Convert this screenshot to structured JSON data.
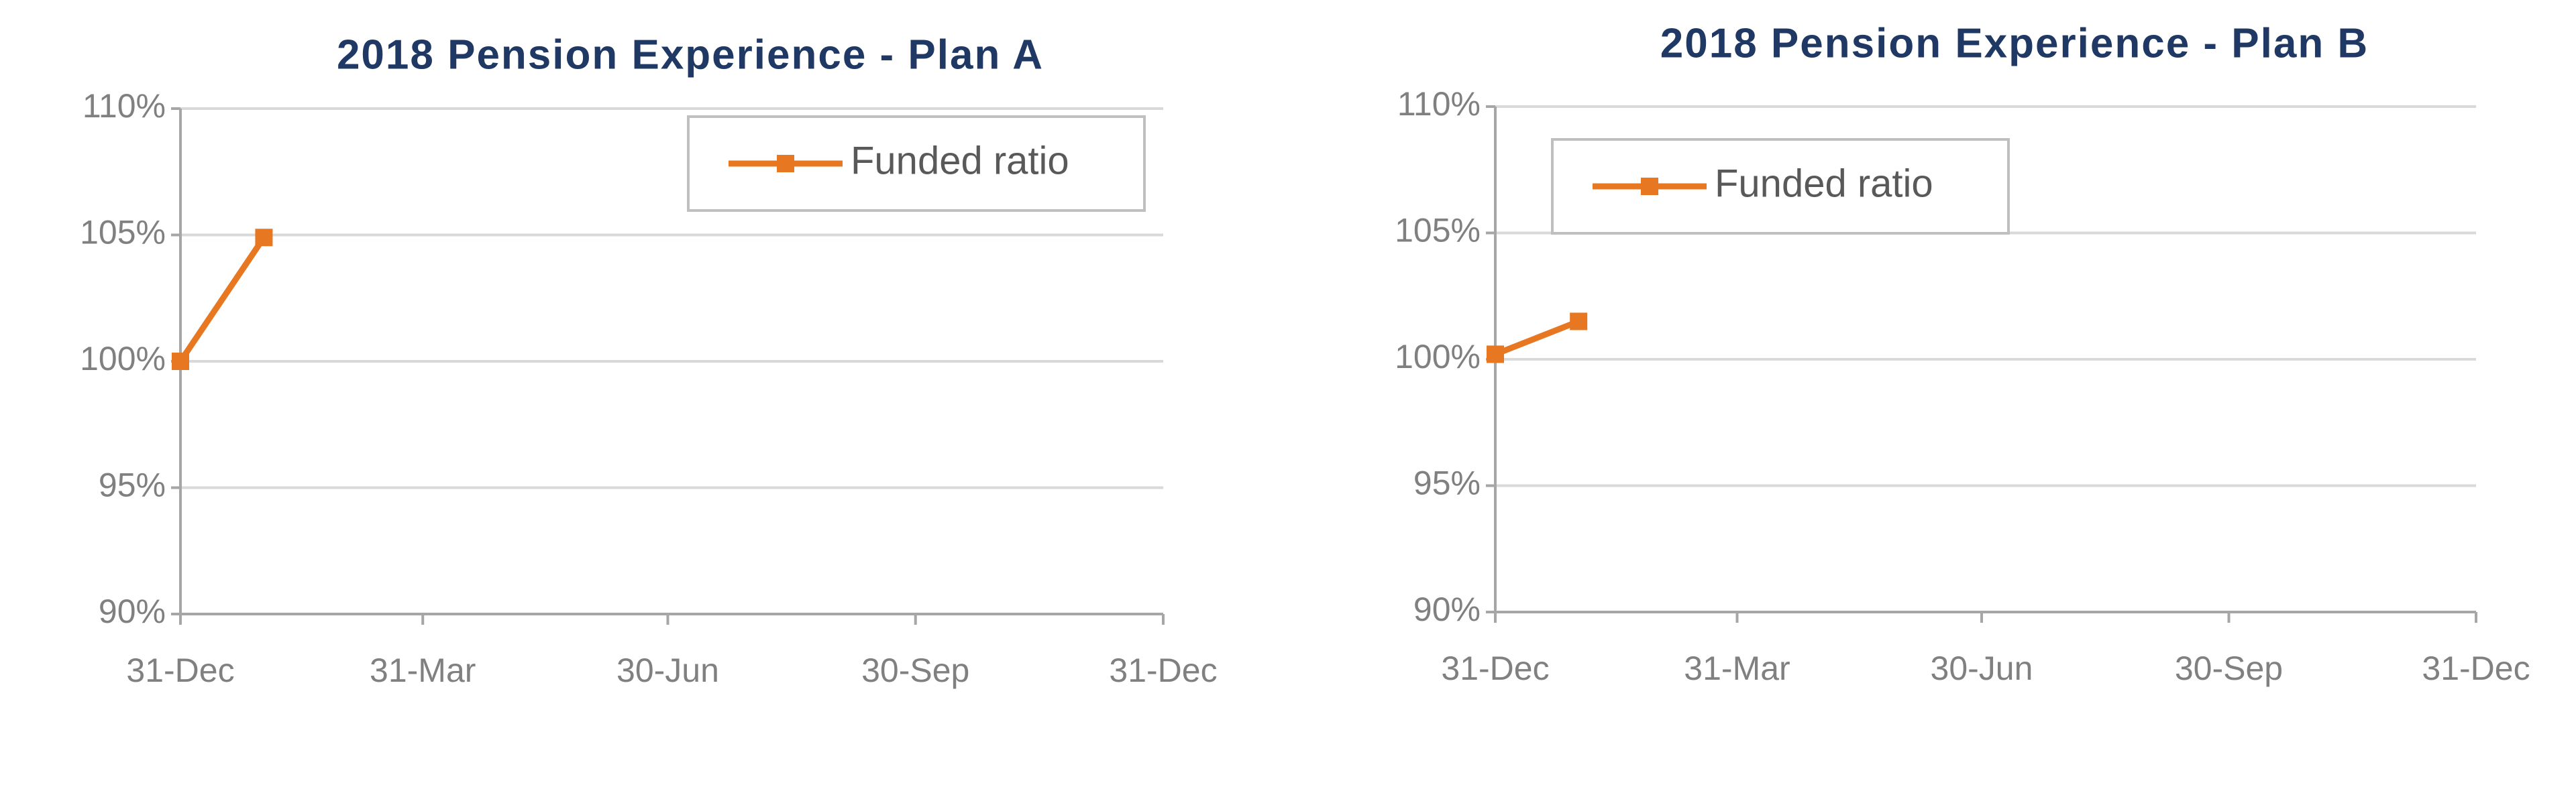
{
  "chart_data": [
    {
      "type": "line",
      "title": "2018 Pension Experience - Plan A",
      "xlim": [
        0,
        365
      ],
      "xticks": [
        {
          "value": 0,
          "label": "31-Dec"
        },
        {
          "value": 90,
          "label": "31-Mar"
        },
        {
          "value": 181,
          "label": "30-Jun"
        },
        {
          "value": 273,
          "label": "30-Sep"
        },
        {
          "value": 365,
          "label": "31-Dec"
        }
      ],
      "ylim": [
        90,
        110
      ],
      "yticks": [
        {
          "value": 90,
          "label": "90%"
        },
        {
          "value": 95,
          "label": "95%"
        },
        {
          "value": 100,
          "label": "100%"
        },
        {
          "value": 105,
          "label": "105%"
        },
        {
          "value": 110,
          "label": "110%"
        }
      ],
      "grid": true,
      "legend": "top-right",
      "series": [
        {
          "name": "Funded ratio",
          "color": "#e87722",
          "x": [
            0,
            31
          ],
          "values": [
            100,
            104.9
          ]
        }
      ]
    },
    {
      "type": "line",
      "title": "2018 Pension Experience - Plan B",
      "xlim": [
        0,
        365
      ],
      "xticks": [
        {
          "value": 0,
          "label": "31-Dec"
        },
        {
          "value": 90,
          "label": "31-Mar"
        },
        {
          "value": 181,
          "label": "30-Jun"
        },
        {
          "value": 273,
          "label": "30-Sep"
        },
        {
          "value": 365,
          "label": "31-Dec"
        }
      ],
      "ylim": [
        90,
        110
      ],
      "yticks": [
        {
          "value": 90,
          "label": "90%"
        },
        {
          "value": 95,
          "label": "95%"
        },
        {
          "value": 100,
          "label": "100%"
        },
        {
          "value": 105,
          "label": "105%"
        },
        {
          "value": 110,
          "label": "110%"
        }
      ],
      "grid": true,
      "legend": "top-left",
      "series": [
        {
          "name": "Funded ratio",
          "color": "#e87722",
          "x": [
            0,
            31
          ],
          "values": [
            100.2,
            101.5
          ]
        }
      ]
    }
  ]
}
